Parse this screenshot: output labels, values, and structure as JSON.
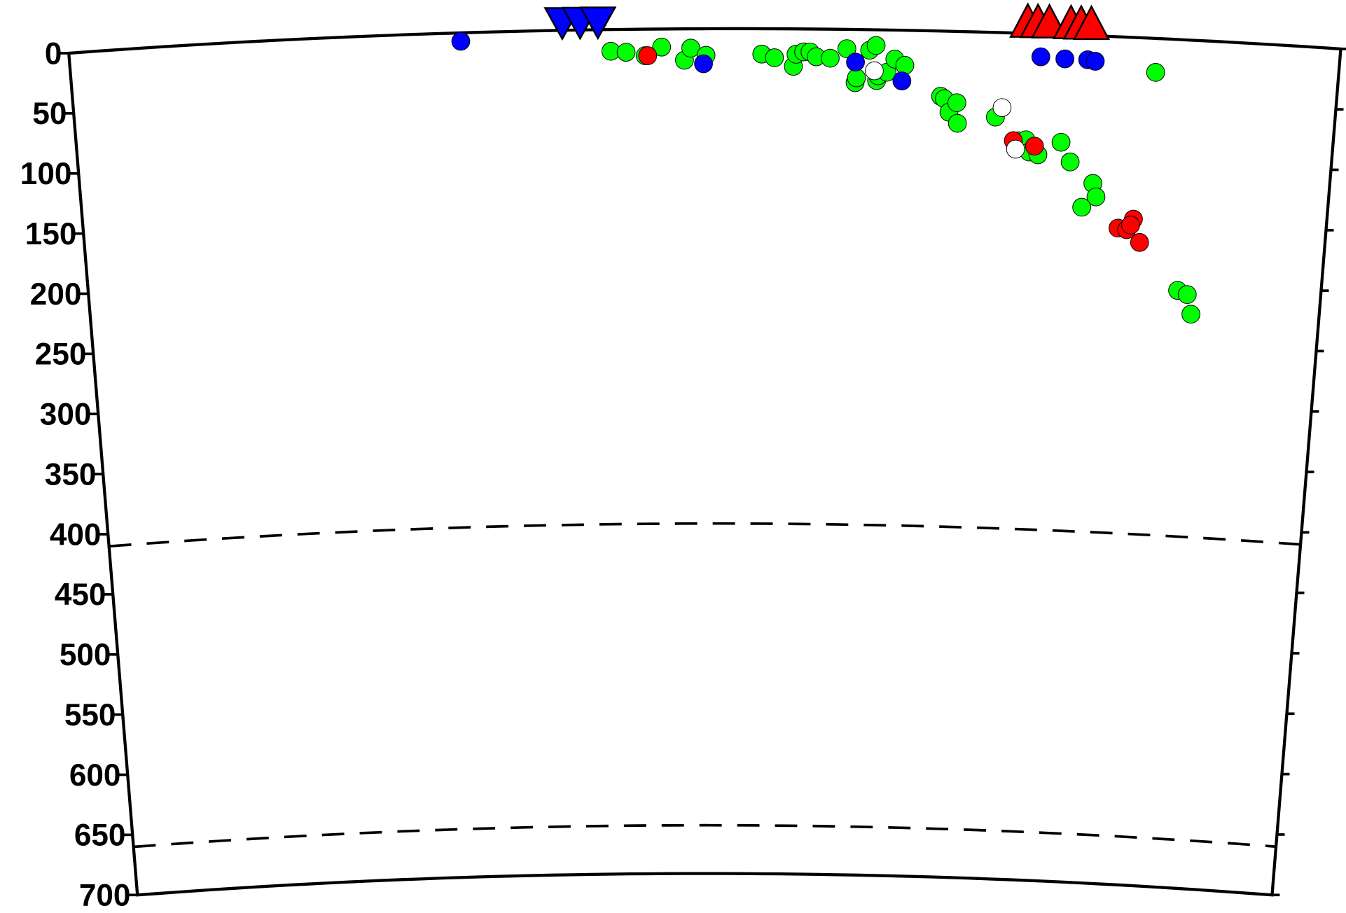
{
  "chart_data": {
    "type": "cross-section",
    "ylim": [
      0,
      700
    ],
    "yticks": [
      0,
      50,
      100,
      150,
      200,
      250,
      300,
      350,
      400,
      450,
      500,
      550,
      600,
      650,
      700
    ],
    "xlim": [
      0,
      1
    ],
    "reference_lines": [
      410,
      660
    ],
    "series": [
      {
        "color": "#00ff00",
        "marker": "circle",
        "x": [
          0.426,
          0.438,
          0.453,
          0.466,
          0.484,
          0.489,
          0.501,
          0.545,
          0.555,
          0.57,
          0.572,
          0.578,
          0.583,
          0.588,
          0.599,
          0.612,
          0.619,
          0.62,
          0.63,
          0.635,
          0.636,
          0.637,
          0.644,
          0.65,
          0.658,
          0.687,
          0.69,
          0.694,
          0.7,
          0.701,
          0.731,
          0.75,
          0.756,
          0.759,
          0.766,
          0.784,
          0.792,
          0.811,
          0.814,
          0.803,
          0.856,
          0.884,
          0.892,
          0.896
        ],
        "values": [
          18,
          19,
          22,
          15,
          26,
          16,
          22,
          21,
          24,
          31,
          21,
          19,
          19,
          23,
          24,
          16,
          44,
          40,
          17,
          13,
          42,
          38,
          35,
          24,
          29,
          54,
          56,
          67,
          59,
          76,
          70,
          89,
          88,
          98,
          100,
          89,
          105,
          122,
          133,
          142,
          28,
          207,
          210,
          226
        ]
      },
      {
        "color": "#0000ff",
        "marker": "circle",
        "x": [
          0.308,
          0.499,
          0.619,
          0.656,
          0.765,
          0.784,
          0.802,
          0.808
        ],
        "values": [
          7,
          29,
          27,
          42,
          19,
          20,
          20,
          21
        ]
      },
      {
        "color": "#ff0000",
        "marker": "circle",
        "x": [
          0.455,
          0.746,
          0.763,
          0.833,
          0.84,
          0.845,
          0.851,
          0.843
        ],
        "values": [
          22,
          89,
          93,
          158,
          159,
          150,
          169,
          155
        ]
      },
      {
        "color": "#ffffff",
        "marker": "circle",
        "x": [
          0.634,
          0.736,
          0.748
        ],
        "values": [
          34,
          62,
          96
        ]
      },
      {
        "color": "#0000ff",
        "marker": "triangle-down",
        "x": [
          0.388,
          0.402,
          0.416
        ],
        "values": [
          0,
          0,
          0
        ]
      },
      {
        "color": "#ff0000",
        "marker": "triangle-up",
        "x": [
          0.754,
          0.762,
          0.771,
          0.788,
          0.796,
          0.804
        ],
        "values": [
          0,
          0,
          0,
          0,
          0,
          0
        ]
      }
    ]
  }
}
